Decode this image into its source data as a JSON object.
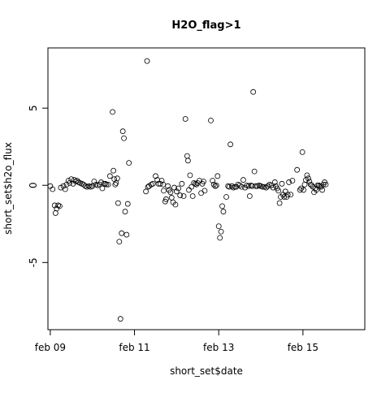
{
  "chart_data": {
    "type": "scatter",
    "title": "H2O_flag>1",
    "xlabel": "short_set$date",
    "ylabel": "short_set$h2o_flux",
    "x_ticks": [
      "feb 09",
      "feb 11",
      "feb 13",
      "feb 15"
    ],
    "y_ticks": [
      "-5",
      "0",
      "5"
    ],
    "xlim": [
      "2008-02-08T22:40",
      "2008-02-16T11:15"
    ],
    "ylim": [
      -9.35,
      8.9
    ],
    "grid": false,
    "marker": "open-circle",
    "points": [
      [
        "2008-02-09T00:00",
        -0.05
      ],
      [
        "2008-02-09T01:20",
        -0.25
      ],
      [
        "2008-02-09T02:30",
        -1.3
      ],
      [
        "2008-02-09T03:00",
        -1.8
      ],
      [
        "2008-02-09T03:40",
        -1.5
      ],
      [
        "2008-02-09T04:30",
        -1.3
      ],
      [
        "2008-02-09T05:20",
        -1.35
      ],
      [
        "2008-02-09T06:00",
        -0.15
      ],
      [
        "2008-02-09T07:30",
        -0.05
      ],
      [
        "2008-02-09T08:30",
        -0.25
      ],
      [
        "2008-02-09T09:20",
        0.05
      ],
      [
        "2008-02-09T10:20",
        0.3
      ],
      [
        "2008-02-09T11:00",
        0.15
      ],
      [
        "2008-02-09T12:00",
        0.4
      ],
      [
        "2008-02-09T13:00",
        0.1
      ],
      [
        "2008-02-09T13:40",
        0.35
      ],
      [
        "2008-02-09T14:30",
        0.25
      ],
      [
        "2008-02-09T15:20",
        0.3
      ],
      [
        "2008-02-09T16:10",
        0.2
      ],
      [
        "2008-02-09T17:00",
        0.15
      ],
      [
        "2008-02-09T18:00",
        0.1
      ],
      [
        "2008-02-09T19:00",
        0.05
      ],
      [
        "2008-02-09T20:00",
        -0.05
      ],
      [
        "2008-02-09T21:00",
        -0.1
      ],
      [
        "2008-02-09T22:00",
        -0.05
      ],
      [
        "2008-02-09T23:00",
        -0.1
      ],
      [
        "2008-02-10T00:00",
        -0.05
      ],
      [
        "2008-02-10T01:00",
        0.25
      ],
      [
        "2008-02-10T02:00",
        0.05
      ],
      [
        "2008-02-10T03:00",
        0.0
      ],
      [
        "2008-02-10T04:00",
        0.05
      ],
      [
        "2008-02-10T05:00",
        0.2
      ],
      [
        "2008-02-10T05:40",
        -0.2
      ],
      [
        "2008-02-10T06:30",
        0.1
      ],
      [
        "2008-02-10T07:20",
        0.1
      ],
      [
        "2008-02-10T08:00",
        0.05
      ],
      [
        "2008-02-10T09:00",
        0.05
      ],
      [
        "2008-02-10T10:00",
        0.6
      ],
      [
        "2008-02-10T11:30",
        4.75
      ],
      [
        "2008-02-10T12:00",
        0.95
      ],
      [
        "2008-02-10T12:30",
        0.4
      ],
      [
        "2008-02-10T13:00",
        0.05
      ],
      [
        "2008-02-10T13:30",
        0.15
      ],
      [
        "2008-02-10T14:10",
        0.45
      ],
      [
        "2008-02-10T14:40",
        -1.15
      ],
      [
        "2008-02-10T15:20",
        -3.65
      ],
      [
        "2008-02-10T16:00",
        -8.65
      ],
      [
        "2008-02-10T16:40",
        -3.1
      ],
      [
        "2008-02-10T17:20",
        3.5
      ],
      [
        "2008-02-10T18:00",
        3.05
      ],
      [
        "2008-02-10T18:40",
        -1.7
      ],
      [
        "2008-02-10T19:30",
        -3.2
      ],
      [
        "2008-02-10T20:10",
        -1.2
      ],
      [
        "2008-02-10T20:50",
        1.45
      ],
      [
        "2008-02-11T06:30",
        -0.4
      ],
      [
        "2008-02-11T07:10",
        8.05
      ],
      [
        "2008-02-11T07:40",
        -0.1
      ],
      [
        "2008-02-11T08:20",
        -0.05
      ],
      [
        "2008-02-11T09:30",
        0.05
      ],
      [
        "2008-02-11T10:30",
        0.1
      ],
      [
        "2008-02-11T12:00",
        0.6
      ],
      [
        "2008-02-11T13:00",
        0.35
      ],
      [
        "2008-02-11T13:40",
        0.1
      ],
      [
        "2008-02-11T14:40",
        0.1
      ],
      [
        "2008-02-11T15:30",
        0.3
      ],
      [
        "2008-02-11T16:20",
        0.05
      ],
      [
        "2008-02-11T16:40",
        -0.35
      ],
      [
        "2008-02-11T17:30",
        -1.05
      ],
      [
        "2008-02-11T18:00",
        -0.9
      ],
      [
        "2008-02-11T19:00",
        -0.05
      ],
      [
        "2008-02-11T19:40",
        -0.3
      ],
      [
        "2008-02-11T20:30",
        -0.45
      ],
      [
        "2008-02-11T21:10",
        -0.8
      ],
      [
        "2008-02-11T22:00",
        -1.1
      ],
      [
        "2008-02-11T22:40",
        -0.15
      ],
      [
        "2008-02-11T23:20",
        -1.25
      ],
      [
        "2008-02-12T00:00",
        -0.4
      ],
      [
        "2008-02-12T01:00",
        -0.2
      ],
      [
        "2008-02-12T02:00",
        -0.65
      ],
      [
        "2008-02-12T03:00",
        0.1
      ],
      [
        "2008-02-12T04:00",
        -0.7
      ],
      [
        "2008-02-12T05:00",
        4.3
      ],
      [
        "2008-02-12T06:00",
        1.9
      ],
      [
        "2008-02-12T06:30",
        1.6
      ],
      [
        "2008-02-12T07:00",
        -0.3
      ],
      [
        "2008-02-12T07:40",
        0.65
      ],
      [
        "2008-02-12T08:30",
        -0.1
      ],
      [
        "2008-02-12T09:10",
        -0.7
      ],
      [
        "2008-02-12T09:50",
        0.15
      ],
      [
        "2008-02-12T10:40",
        0.1
      ],
      [
        "2008-02-12T11:20",
        0.05
      ],
      [
        "2008-02-12T12:00",
        0.15
      ],
      [
        "2008-02-12T13:00",
        0.3
      ],
      [
        "2008-02-12T14:00",
        -0.5
      ],
      [
        "2008-02-12T14:40",
        0.1
      ],
      [
        "2008-02-12T15:20",
        0.25
      ],
      [
        "2008-02-12T16:00",
        -0.35
      ],
      [
        "2008-02-12T19:30",
        4.2
      ],
      [
        "2008-02-12T20:30",
        0.3
      ],
      [
        "2008-02-12T21:10",
        0.05
      ],
      [
        "2008-02-12T22:00",
        -0.05
      ],
      [
        "2008-02-12T22:40",
        0.0
      ],
      [
        "2008-02-12T23:20",
        0.6
      ],
      [
        "2008-02-13T00:00",
        -2.65
      ],
      [
        "2008-02-13T00:40",
        -3.4
      ],
      [
        "2008-02-13T01:20",
        -3.0
      ],
      [
        "2008-02-13T02:00",
        -1.35
      ],
      [
        "2008-02-13T02:40",
        -1.7
      ],
      [
        "2008-02-13T04:20",
        -0.75
      ],
      [
        "2008-02-13T05:20",
        -0.05
      ],
      [
        "2008-02-13T06:00",
        -0.1
      ],
      [
        "2008-02-13T06:40",
        2.65
      ],
      [
        "2008-02-13T07:30",
        -0.05
      ],
      [
        "2008-02-13T08:20",
        -0.15
      ],
      [
        "2008-02-13T09:20",
        -0.1
      ],
      [
        "2008-02-13T10:00",
        -0.1
      ],
      [
        "2008-02-13T11:00",
        0.05
      ],
      [
        "2008-02-13T12:00",
        0.0
      ],
      [
        "2008-02-13T13:00",
        -0.1
      ],
      [
        "2008-02-13T14:00",
        0.35
      ],
      [
        "2008-02-13T15:00",
        -0.15
      ],
      [
        "2008-02-13T16:00",
        0.0
      ],
      [
        "2008-02-13T17:00",
        -0.05
      ],
      [
        "2008-02-13T17:40",
        -0.7
      ],
      [
        "2008-02-13T18:20",
        0.0
      ],
      [
        "2008-02-13T19:00",
        -0.05
      ],
      [
        "2008-02-13T19:40",
        6.05
      ],
      [
        "2008-02-13T20:20",
        0.9
      ],
      [
        "2008-02-13T21:00",
        -0.05
      ],
      [
        "2008-02-13T22:00",
        -0.05
      ],
      [
        "2008-02-13T23:00",
        0.0
      ],
      [
        "2008-02-14T00:00",
        -0.05
      ],
      [
        "2008-02-14T01:00",
        -0.1
      ],
      [
        "2008-02-14T02:00",
        -0.1
      ],
      [
        "2008-02-14T03:00",
        -0.15
      ],
      [
        "2008-02-14T04:00",
        -0.05
      ],
      [
        "2008-02-14T05:00",
        0.05
      ],
      [
        "2008-02-14T06:00",
        0.0
      ],
      [
        "2008-02-14T07:00",
        -0.15
      ],
      [
        "2008-02-14T08:00",
        0.2
      ],
      [
        "2008-02-14T08:30",
        -0.05
      ],
      [
        "2008-02-14T09:20",
        -0.2
      ],
      [
        "2008-02-14T10:00",
        -0.35
      ],
      [
        "2008-02-14T10:40",
        -1.15
      ],
      [
        "2008-02-14T11:20",
        -0.75
      ],
      [
        "2008-02-14T12:00",
        0.1
      ],
      [
        "2008-02-14T12:40",
        -0.6
      ],
      [
        "2008-02-14T13:20",
        -0.75
      ],
      [
        "2008-02-14T14:00",
        -0.4
      ],
      [
        "2008-02-14T14:40",
        -0.75
      ],
      [
        "2008-02-14T15:20",
        -0.6
      ],
      [
        "2008-02-14T16:00",
        0.2
      ],
      [
        "2008-02-14T17:00",
        -0.6
      ],
      [
        "2008-02-14T18:00",
        0.3
      ],
      [
        "2008-02-14T20:40",
        1.0
      ],
      [
        "2008-02-14T22:20",
        -0.3
      ],
      [
        "2008-02-14T23:00",
        -0.2
      ],
      [
        "2008-02-14T23:40",
        2.15
      ],
      [
        "2008-02-15T00:20",
        -0.3
      ],
      [
        "2008-02-15T01:00",
        0.05
      ],
      [
        "2008-02-15T01:40",
        0.35
      ],
      [
        "2008-02-15T02:20",
        0.65
      ],
      [
        "2008-02-15T03:00",
        0.45
      ],
      [
        "2008-02-15T03:40",
        0.25
      ],
      [
        "2008-02-15T04:20",
        0.05
      ],
      [
        "2008-02-15T05:00",
        0.0
      ],
      [
        "2008-02-15T05:40",
        -0.1
      ],
      [
        "2008-02-15T06:20",
        -0.45
      ],
      [
        "2008-02-15T07:00",
        -0.2
      ],
      [
        "2008-02-15T07:40",
        -0.3
      ],
      [
        "2008-02-15T08:20",
        0.0
      ],
      [
        "2008-02-15T09:00",
        0.0
      ],
      [
        "2008-02-15T09:40",
        -0.05
      ],
      [
        "2008-02-15T10:20",
        -0.1
      ],
      [
        "2008-02-15T11:00",
        -0.3
      ],
      [
        "2008-02-15T11:40",
        0.05
      ],
      [
        "2008-02-15T12:20",
        0.2
      ],
      [
        "2008-02-15T13:00",
        0.05
      ]
    ]
  }
}
